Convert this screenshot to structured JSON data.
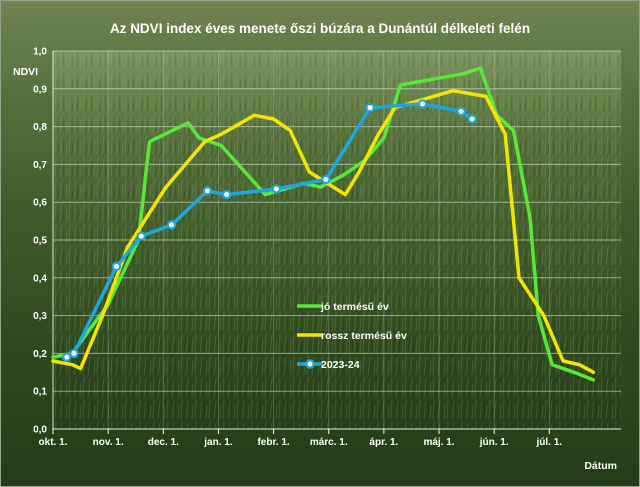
{
  "chart_data": {
    "type": "line",
    "title": "Az NDVI index éves menete őszi búzára a Dunántúl délkeleti felén",
    "ylabel": "NDVI",
    "xlabel": "Dátum",
    "ylim": [
      0,
      1
    ],
    "xlim": [
      0,
      10.3
    ],
    "yticks": [
      "0,0",
      "0,1",
      "0,2",
      "0,3",
      "0,4",
      "0,5",
      "0,6",
      "0,7",
      "0,8",
      "0,9",
      "1,0"
    ],
    "xticks": [
      "okt. 1.",
      "nov. 1.",
      "dec. 1.",
      "jan. 1.",
      "febr. 1.",
      "márc. 1.",
      "ápr. 1.",
      "máj. 1.",
      "jún. 1.",
      "júl. 1."
    ],
    "grid": true,
    "legend_position": "center-right",
    "series": [
      {
        "name": "jó termésű év",
        "color": "#59e83a",
        "markers": false,
        "points": [
          [
            0,
            0.19
          ],
          [
            0.35,
            0.2
          ],
          [
            0.6,
            0.25
          ],
          [
            1.0,
            0.33
          ],
          [
            1.55,
            0.5
          ],
          [
            1.75,
            0.76
          ],
          [
            2.45,
            0.81
          ],
          [
            2.65,
            0.77
          ],
          [
            3.05,
            0.75
          ],
          [
            3.85,
            0.62
          ],
          [
            4.55,
            0.65
          ],
          [
            4.85,
            0.64
          ],
          [
            5.25,
            0.67
          ],
          [
            5.65,
            0.71
          ],
          [
            6.0,
            0.77
          ],
          [
            6.3,
            0.91
          ],
          [
            7.45,
            0.94
          ],
          [
            7.75,
            0.955
          ],
          [
            8.05,
            0.83
          ],
          [
            8.35,
            0.79
          ],
          [
            8.65,
            0.56
          ],
          [
            8.8,
            0.3
          ],
          [
            9.05,
            0.17
          ],
          [
            9.45,
            0.15
          ],
          [
            9.8,
            0.13
          ]
        ]
      },
      {
        "name": "rossz termésű év",
        "color": "#f2e600",
        "markers": false,
        "points": [
          [
            0,
            0.18
          ],
          [
            0.35,
            0.17
          ],
          [
            0.5,
            0.16
          ],
          [
            0.9,
            0.3
          ],
          [
            1.35,
            0.48
          ],
          [
            2.05,
            0.64
          ],
          [
            2.75,
            0.76
          ],
          [
            3.05,
            0.78
          ],
          [
            3.65,
            0.83
          ],
          [
            4.0,
            0.82
          ],
          [
            4.3,
            0.79
          ],
          [
            4.65,
            0.68
          ],
          [
            5.3,
            0.62
          ],
          [
            5.55,
            0.68
          ],
          [
            5.9,
            0.78
          ],
          [
            6.2,
            0.85
          ],
          [
            6.9,
            0.88
          ],
          [
            7.25,
            0.895
          ],
          [
            7.85,
            0.88
          ],
          [
            8.2,
            0.78
          ],
          [
            8.45,
            0.4
          ],
          [
            8.9,
            0.3
          ],
          [
            9.25,
            0.18
          ],
          [
            9.55,
            0.17
          ],
          [
            9.8,
            0.15
          ]
        ]
      },
      {
        "name": "2023-24",
        "color": "#1da6e0",
        "markers": true,
        "points": [
          [
            0.25,
            0.19
          ],
          [
            0.38,
            0.2
          ],
          [
            1.15,
            0.43
          ],
          [
            1.6,
            0.51
          ],
          [
            2.15,
            0.54
          ],
          [
            2.8,
            0.63
          ],
          [
            3.15,
            0.62
          ],
          [
            4.05,
            0.635
          ],
          [
            4.95,
            0.66
          ],
          [
            5.75,
            0.85
          ],
          [
            6.7,
            0.86
          ],
          [
            7.4,
            0.84
          ],
          [
            7.6,
            0.82
          ]
        ]
      }
    ]
  }
}
